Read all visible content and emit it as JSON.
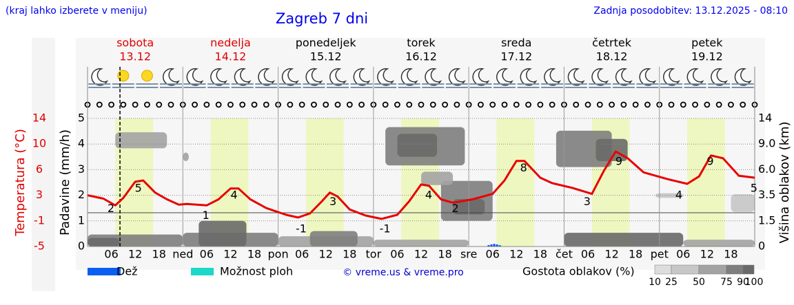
{
  "header": {
    "hint": "(kraj lahko izberete v meniju)",
    "title": "Zagreb 7 dni",
    "updated": "Zadnja posodobitev: 13.12.2025 - 08:10"
  },
  "chart_data": {
    "type": "meteogram",
    "days": [
      {
        "name": "sobota",
        "date": "13.12",
        "color": "#e00000"
      },
      {
        "name": "nedelja",
        "date": "14.12",
        "color": "#e00000"
      },
      {
        "name": "ponedeljek",
        "date": "15.12",
        "color": "#000000"
      },
      {
        "name": "torek",
        "date": "16.12",
        "color": "#000000"
      },
      {
        "name": "sreda",
        "date": "17.12",
        "color": "#000000"
      },
      {
        "name": "četrtek",
        "date": "18.12",
        "color": "#000000"
      },
      {
        "name": "petek",
        "date": "19.12",
        "color": "#000000"
      }
    ],
    "xlim": [
      0,
      168
    ],
    "xticks": [
      {
        "value": 6,
        "label": "06"
      },
      {
        "value": 12,
        "label": "12"
      },
      {
        "value": 18,
        "label": "18"
      },
      {
        "value": 24,
        "label": "ned"
      },
      {
        "value": 30,
        "label": "06"
      },
      {
        "value": 36,
        "label": "12"
      },
      {
        "value": 42,
        "label": "18"
      },
      {
        "value": 48,
        "label": "pon"
      },
      {
        "value": 54,
        "label": "06"
      },
      {
        "value": 60,
        "label": "12"
      },
      {
        "value": 66,
        "label": "18"
      },
      {
        "value": 72,
        "label": "tor"
      },
      {
        "value": 78,
        "label": "06"
      },
      {
        "value": 84,
        "label": "12"
      },
      {
        "value": 90,
        "label": "18"
      },
      {
        "value": 96,
        "label": "sre"
      },
      {
        "value": 102,
        "label": "06"
      },
      {
        "value": 108,
        "label": "12"
      },
      {
        "value": 114,
        "label": "18"
      },
      {
        "value": 120,
        "label": "čet"
      },
      {
        "value": 126,
        "label": "06"
      },
      {
        "value": 132,
        "label": "12"
      },
      {
        "value": 138,
        "label": "18"
      },
      {
        "value": 144,
        "label": "pet"
      },
      {
        "value": 150,
        "label": "06"
      },
      {
        "value": 156,
        "label": "12"
      },
      {
        "value": 162,
        "label": "18"
      }
    ],
    "ylabel": "Padavine (mm/h)",
    "ylim": [
      0,
      5
    ],
    "yticks": [
      0,
      1,
      2,
      3,
      4,
      5
    ],
    "temp_label": "Temperatura (°C)",
    "templim": [
      -5,
      14
    ],
    "tempticks": [
      -5,
      {
        "value": -1.2,
        "label": "-1"
      },
      {
        "value": 2.6,
        "label": "3"
      },
      {
        "value": 6.4,
        "label": "6"
      },
      {
        "value": 10.2,
        "label": "10"
      },
      14
    ],
    "freezing_line": 0,
    "y2label": "Višina oblakov (km)",
    "y2lim": [
      0,
      14
    ],
    "y2ticks": [
      0,
      1.5,
      3.5,
      {
        "value": 6,
        "label": "6.0"
      },
      {
        "value": 9,
        "label": "9.0"
      },
      14
    ],
    "now": 8.17,
    "daylight": [
      7,
      16.5
    ],
    "temperature": {
      "color": "#e80000",
      "x": [
        0,
        4,
        7,
        9,
        12,
        14,
        17,
        20,
        23,
        25,
        30,
        33,
        36,
        38,
        41,
        45,
        50,
        53,
        56,
        59,
        61,
        63,
        66,
        70,
        74,
        78,
        81,
        84,
        86,
        89,
        92,
        97,
        102,
        105,
        108,
        110,
        114,
        117,
        122,
        127,
        130,
        133,
        136,
        140,
        146,
        151,
        154,
        157,
        160,
        164,
        168
      ],
      "values": [
        2.6,
        2.1,
        1.1,
        2.2,
        4.6,
        4.8,
        3.0,
        2.0,
        1.2,
        1.3,
        1.1,
        2.0,
        3.6,
        3.6,
        2.0,
        0.7,
        -0.3,
        -0.7,
        -0.1,
        1.7,
        3.0,
        2.4,
        0.5,
        -0.4,
        -0.9,
        -0.3,
        1.7,
        4.2,
        4.0,
        2.0,
        1.5,
        2.0,
        2.8,
        4.8,
        7.7,
        7.7,
        5.2,
        4.4,
        3.7,
        2.8,
        6.2,
        9.1,
        8.1,
        6.0,
        5.0,
        4.3,
        5.4,
        8.5,
        8.1,
        5.5,
        5.2
      ]
    },
    "temp_extremes": {
      "x": [
        5.9,
        12.8,
        29.8,
        36.9,
        53.8,
        61.8,
        74.9,
        85.9,
        92.6,
        109.8,
        125.8,
        133.8,
        148.9,
        156.8,
        167.8
      ],
      "values": [
        2,
        5,
        1,
        4,
        -1,
        3,
        -1,
        4,
        2,
        8,
        3,
        9,
        4,
        9,
        5
      ]
    },
    "rain": {
      "color": "#0a50e8",
      "x": [
        101,
        101.7,
        102.4,
        103.1,
        103.8
      ],
      "values": [
        0.05,
        0.08,
        0.1,
        0.08,
        0.05
      ]
    },
    "clouds": [
      {
        "x": [
          0,
          24
        ],
        "km": [
          0,
          0.7
        ],
        "density": 75
      },
      {
        "x": [
          0,
          8
        ],
        "km": [
          0,
          0.5
        ],
        "density": 90
      },
      {
        "x": [
          24,
          48
        ],
        "km": [
          0,
          0.8
        ],
        "density": 75
      },
      {
        "x": [
          28,
          40
        ],
        "km": [
          0,
          1.5
        ],
        "density": 90
      },
      {
        "x": [
          48,
          72
        ],
        "km": [
          0,
          0.6
        ],
        "density": 50
      },
      {
        "x": [
          56,
          68
        ],
        "km": [
          0,
          0.9
        ],
        "density": 75
      },
      {
        "x": [
          72,
          96
        ],
        "km": [
          0,
          0.4
        ],
        "density": 50
      },
      {
        "x": [
          120,
          150
        ],
        "km": [
          0,
          0.8
        ],
        "density": 90
      },
      {
        "x": [
          150,
          168
        ],
        "km": [
          0,
          0.4
        ],
        "density": 50
      },
      {
        "x": [
          75,
          95
        ],
        "km": [
          6.5,
          12.3
        ],
        "density": 75
      },
      {
        "x": [
          78,
          88
        ],
        "km": [
          7.5,
          11
        ],
        "density": 90
      },
      {
        "x": [
          89,
          102
        ],
        "km": [
          1.5,
          4.9
        ],
        "density": 75
      },
      {
        "x": [
          92,
          100
        ],
        "km": [
          2,
          3.2
        ],
        "density": 90
      },
      {
        "x": [
          84,
          92
        ],
        "km": [
          4.5,
          5.8
        ],
        "density": 50
      },
      {
        "x": [
          118,
          132
        ],
        "km": [
          6.3,
          11.6
        ],
        "density": 75
      },
      {
        "x": [
          128,
          136
        ],
        "km": [
          7,
          10
        ],
        "density": 90
      },
      {
        "x": [
          143,
          150
        ],
        "km": [
          3.3,
          3.7
        ],
        "density": 25
      },
      {
        "x": [
          162,
          168
        ],
        "km": [
          2.2,
          3.6
        ],
        "density": 25
      },
      {
        "x": [
          7,
          20
        ],
        "km": [
          8.5,
          11.3
        ],
        "density": 50
      },
      {
        "x": [
          24,
          25.5
        ],
        "km": [
          7,
          8
        ],
        "density": 50
      }
    ],
    "legend": [
      {
        "name": "Dež",
        "color": "#0a5ef0"
      },
      {
        "name": "Možnost ploh",
        "color": "#1cd8c8"
      }
    ],
    "credit": "© vreme.us & vreme.pro",
    "density_title": "Gostota oblakov (%)",
    "density_ticks": [
      10,
      25,
      50,
      75,
      90,
      100
    ]
  }
}
